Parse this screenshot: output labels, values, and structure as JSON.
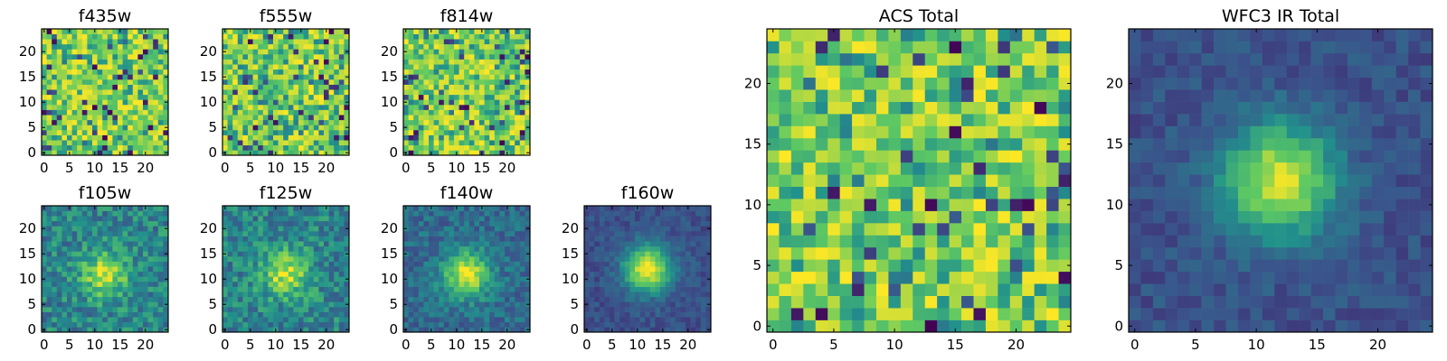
{
  "chart_data": [
    {
      "type": "heatmap",
      "title": "f435w",
      "xlim": [
        0,
        24
      ],
      "ylim": [
        0,
        24
      ],
      "xticks": [
        0,
        5,
        10,
        15,
        20
      ],
      "yticks": [
        0,
        5,
        10,
        15,
        20
      ],
      "pattern": "noise",
      "seed": 11
    },
    {
      "type": "heatmap",
      "title": "f555w",
      "xlim": [
        0,
        24
      ],
      "ylim": [
        0,
        24
      ],
      "xticks": [
        0,
        5,
        10,
        15,
        20
      ],
      "yticks": [
        0,
        5,
        10,
        15,
        20
      ],
      "pattern": "noise",
      "seed": 23
    },
    {
      "type": "heatmap",
      "title": "f814w",
      "xlim": [
        0,
        24
      ],
      "ylim": [
        0,
        24
      ],
      "xticks": [
        0,
        5,
        10,
        15,
        20
      ],
      "yticks": [
        0,
        5,
        10,
        15,
        20
      ],
      "pattern": "noise",
      "seed": 37
    },
    {
      "type": "heatmap",
      "title": "f105w",
      "xlim": [
        0,
        24
      ],
      "ylim": [
        0,
        24
      ],
      "xticks": [
        0,
        5,
        10,
        15,
        20
      ],
      "yticks": [
        0,
        5,
        10,
        15,
        20
      ],
      "pattern": "source",
      "source_center": [
        12,
        11
      ],
      "source_amplitude": 0.45,
      "noise": 0.35,
      "base": 0.45,
      "seed": 41
    },
    {
      "type": "heatmap",
      "title": "f125w",
      "xlim": [
        0,
        24
      ],
      "ylim": [
        0,
        24
      ],
      "xticks": [
        0,
        5,
        10,
        15,
        20
      ],
      "yticks": [
        0,
        5,
        10,
        15,
        20
      ],
      "pattern": "source",
      "source_center": [
        12,
        11
      ],
      "source_amplitude": 0.45,
      "noise": 0.35,
      "base": 0.45,
      "seed": 53
    },
    {
      "type": "heatmap",
      "title": "f140w",
      "xlim": [
        0,
        24
      ],
      "ylim": [
        0,
        24
      ],
      "xticks": [
        0,
        5,
        10,
        15,
        20
      ],
      "yticks": [
        0,
        5,
        10,
        15,
        20
      ],
      "pattern": "source",
      "source_center": [
        12,
        11
      ],
      "source_amplitude": 0.6,
      "noise": 0.25,
      "base": 0.35,
      "seed": 67
    },
    {
      "type": "heatmap",
      "title": "f160w",
      "xlim": [
        0,
        24
      ],
      "ylim": [
        0,
        24
      ],
      "xticks": [
        0,
        5,
        10,
        15,
        20
      ],
      "yticks": [
        0,
        5,
        10,
        15,
        20
      ],
      "pattern": "source",
      "source_center": [
        12,
        12
      ],
      "source_amplitude": 0.75,
      "noise": 0.15,
      "base": 0.25,
      "seed": 79
    },
    {
      "type": "heatmap",
      "title": "ACS Total",
      "xlim": [
        0,
        24
      ],
      "ylim": [
        0,
        24
      ],
      "xticks": [
        0,
        5,
        10,
        15,
        20
      ],
      "yticks": [
        0,
        5,
        10,
        15,
        20
      ],
      "pattern": "noise",
      "seed": 97
    },
    {
      "type": "heatmap",
      "title": "WFC3 IR Total",
      "xlim": [
        0,
        24
      ],
      "ylim": [
        0,
        24
      ],
      "xticks": [
        0,
        5,
        10,
        15,
        20
      ],
      "yticks": [
        0,
        5,
        10,
        15,
        20
      ],
      "pattern": "source",
      "source_center": [
        12,
        12
      ],
      "source_amplitude": 0.7,
      "noise": 0.15,
      "base": 0.25,
      "seed": 101
    }
  ],
  "colormap": [
    "#440154",
    "#3b528b",
    "#21918c",
    "#5ec962",
    "#fde725"
  ]
}
